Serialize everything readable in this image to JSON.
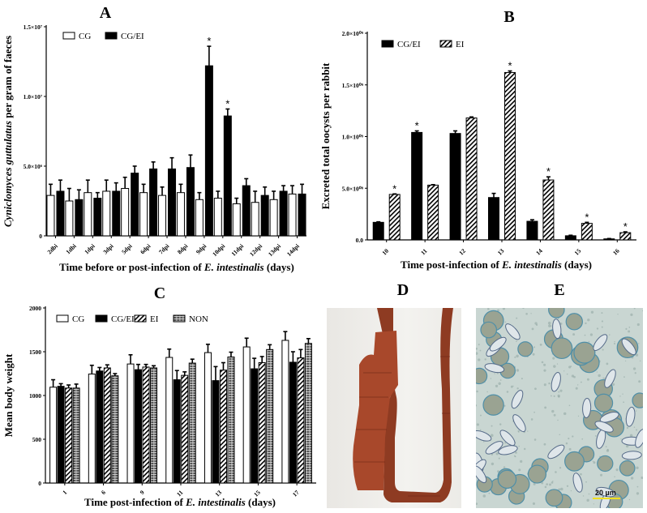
{
  "panels": {
    "a": "A",
    "b": "B",
    "c": "C",
    "d": "D",
    "e": "E"
  },
  "photo_e": {
    "scale_bar_label": "20 µm",
    "scale_bar_color": "#f0e020"
  },
  "chart_data": [
    {
      "id": "A",
      "type": "bar",
      "title": "A",
      "ylabel_parts": [
        {
          "text": "Cyniclomyces guttulatus",
          "italic": true
        },
        {
          "text": " per gram of faeces",
          "italic": false
        }
      ],
      "xlabel_parts": [
        {
          "text": "Time before or post-infection of ",
          "italic": false
        },
        {
          "text": "E. intestinalis",
          "italic": true
        },
        {
          "text": " (days)",
          "italic": false
        }
      ],
      "categories": [
        "2dbi",
        "1dbi",
        "1dpi",
        "3dpi",
        "5dpi",
        "6dpi",
        "7dpi",
        "8dpi",
        "9dpi",
        "10dpi",
        "11dpi",
        "12dpi",
        "13dpi",
        "14dpi"
      ],
      "ylim": [
        0,
        15000000
      ],
      "yticks": [
        0,
        5000000,
        10000000,
        15000000
      ],
      "ytick_labels": [
        "0",
        "5.0×10⁶",
        "1.0×10⁷",
        "1.5×10⁷"
      ],
      "legend": "top-left",
      "grid": false,
      "series": [
        {
          "name": "CG",
          "pattern": "open",
          "values": [
            2900000,
            2500000,
            3100000,
            3200000,
            3400000,
            3100000,
            2900000,
            3100000,
            2600000,
            2700000,
            2300000,
            2400000,
            2600000,
            3000000
          ],
          "errors": [
            800000,
            900000,
            900000,
            800000,
            800000,
            600000,
            600000,
            600000,
            500000,
            500000,
            400000,
            800000,
            600000,
            600000
          ],
          "significant": []
        },
        {
          "name": "CG/EI",
          "pattern": "solid",
          "values": [
            3200000,
            2600000,
            2700000,
            3200000,
            4500000,
            4800000,
            4800000,
            4900000,
            12200000,
            8600000,
            3600000,
            2900000,
            3200000,
            3000000
          ],
          "errors": [
            800000,
            700000,
            400000,
            600000,
            500000,
            500000,
            800000,
            900000,
            1400000,
            500000,
            500000,
            600000,
            400000,
            700000
          ],
          "significant": [
            "9dpi",
            "10dpi"
          ]
        }
      ]
    },
    {
      "id": "B",
      "type": "bar",
      "title": "B",
      "ylabel_parts": [
        {
          "text": "Excreted total oocysts per rabbit",
          "italic": false
        }
      ],
      "xlabel_parts": [
        {
          "text": "Time post-infection of ",
          "italic": false
        },
        {
          "text": "E. intestinalis",
          "italic": true
        },
        {
          "text": " (days)",
          "italic": false
        }
      ],
      "categories": [
        "10",
        "11",
        "12",
        "13",
        "14",
        "15",
        "16"
      ],
      "ylim": [
        0,
        2000000000
      ],
      "yticks": [
        0,
        500000000,
        1000000000,
        1500000000,
        2000000000
      ],
      "ytick_labels": [
        "0.0",
        "5.0×10⁰⁸",
        "1.0×10⁰⁹",
        "1.5×10⁰⁹",
        "2.0×10⁰⁹"
      ],
      "legend": "top-left",
      "grid": false,
      "series": [
        {
          "name": "CG/EI",
          "pattern": "solid",
          "values": [
            170000000,
            1040000000,
            1030000000,
            410000000,
            180000000,
            40000000,
            10000000
          ],
          "errors": [
            5000000,
            15000000,
            25000000,
            40000000,
            15000000,
            5000000,
            3000000
          ],
          "significant": [
            "11"
          ]
        },
        {
          "name": "EI",
          "pattern": "diagonal-hatch",
          "values": [
            440000000,
            530000000,
            1180000000,
            1620000000,
            580000000,
            160000000,
            70000000
          ],
          "errors": [
            5000000,
            5000000,
            10000000,
            15000000,
            30000000,
            10000000,
            8000000
          ],
          "significant": [
            "10",
            "13",
            "14",
            "15",
            "16"
          ]
        }
      ]
    },
    {
      "id": "C",
      "type": "bar",
      "title": "C",
      "ylabel_parts": [
        {
          "text": "Mean body weight",
          "italic": false
        }
      ],
      "xlabel_parts": [
        {
          "text": "Time post-infection of ",
          "italic": false
        },
        {
          "text": "E. intestinalis",
          "italic": true
        },
        {
          "text": " (days)",
          "italic": false
        }
      ],
      "categories": [
        "1",
        "6",
        "9",
        "11",
        "13",
        "15",
        "17"
      ],
      "ylim": [
        0,
        2000
      ],
      "yticks": [
        0,
        500,
        1000,
        1500,
        2000
      ],
      "ytick_labels": [
        "0",
        "500",
        "1000",
        "1500",
        "2000"
      ],
      "legend": "top",
      "grid": false,
      "series": [
        {
          "name": "CG",
          "pattern": "open",
          "values": [
            1095,
            1245,
            1360,
            1435,
            1490,
            1555,
            1630
          ],
          "errors": [
            85,
            100,
            105,
            95,
            95,
            100,
            100
          ],
          "significant": []
        },
        {
          "name": "CG/EI",
          "pattern": "solid",
          "values": [
            1105,
            1280,
            1295,
            1180,
            1170,
            1305,
            1380
          ],
          "errors": [
            30,
            40,
            60,
            105,
            160,
            120,
            120
          ],
          "significant": []
        },
        {
          "name": "EI",
          "pattern": "diagonal-hatch",
          "values": [
            1085,
            1315,
            1325,
            1230,
            1290,
            1375,
            1430
          ],
          "errors": [
            35,
            35,
            30,
            40,
            85,
            70,
            95
          ],
          "significant": []
        },
        {
          "name": "NON",
          "pattern": "dark-brick",
          "values": [
            1085,
            1225,
            1315,
            1370,
            1440,
            1525,
            1595
          ],
          "errors": [
            45,
            25,
            25,
            45,
            55,
            55,
            55
          ],
          "significant": []
        }
      ]
    }
  ]
}
